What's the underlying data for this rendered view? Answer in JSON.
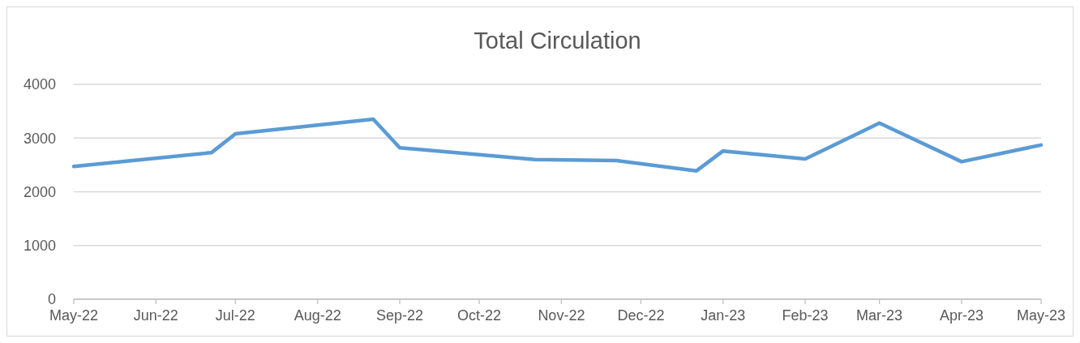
{
  "chart_data": {
    "type": "line",
    "title": "Total Circulation",
    "x": [
      "2022-05-01",
      "2022-06-22",
      "2022-07-01",
      "2022-08-22",
      "2022-09-01",
      "2022-10-22",
      "2022-11-22",
      "2022-12-22",
      "2023-01-01",
      "2023-02-01",
      "2023-03-01",
      "2023-04-01",
      "2023-05-01"
    ],
    "series": [
      {
        "color": "#5b9bd5",
        "values": [
          2470,
          2730,
          3080,
          3350,
          2820,
          2600,
          2580,
          2390,
          2760,
          2610,
          3280,
          2560,
          2870
        ]
      }
    ],
    "xlim": [
      "2022-05-01",
      "2023-05-01"
    ],
    "xticks": [
      {
        "value": "2022-05-01",
        "label": "May-22"
      },
      {
        "value": "2022-06-01",
        "label": "Jun-22"
      },
      {
        "value": "2022-07-01",
        "label": "Jul-22"
      },
      {
        "value": "2022-08-01",
        "label": "Aug-22"
      },
      {
        "value": "2022-09-01",
        "label": "Sep-22"
      },
      {
        "value": "2022-10-01",
        "label": "Oct-22"
      },
      {
        "value": "2022-11-01",
        "label": "Nov-22"
      },
      {
        "value": "2022-12-01",
        "label": "Dec-22"
      },
      {
        "value": "2023-01-01",
        "label": "Jan-23"
      },
      {
        "value": "2023-02-01",
        "label": "Feb-23"
      },
      {
        "value": "2023-03-01",
        "label": "Mar-23"
      },
      {
        "value": "2023-04-01",
        "label": "Apr-23"
      },
      {
        "value": "2023-05-01",
        "label": "May-23"
      }
    ],
    "ylim": [
      0,
      4000
    ],
    "yticks": [
      0,
      1000,
      2000,
      3000,
      4000
    ],
    "grid": "y",
    "marker": "none",
    "line_style": "solid"
  }
}
